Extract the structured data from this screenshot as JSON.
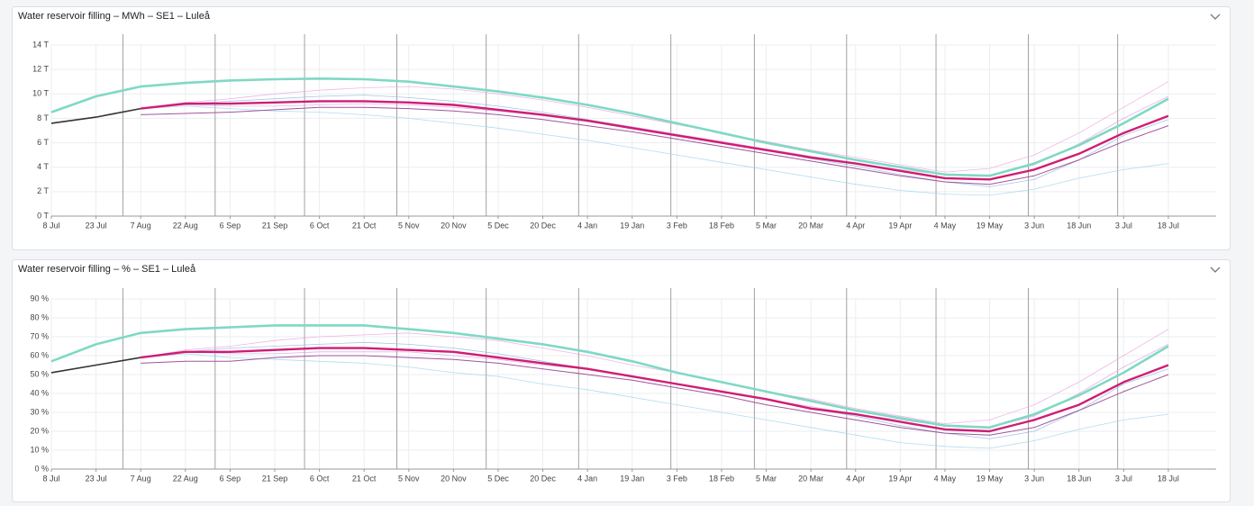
{
  "chart_data": [
    {
      "type": "line",
      "title": "Water reservoir filling – MWh – SE1 – Luleå",
      "categories": [
        "8 Jul",
        "23 Jul",
        "7 Aug",
        "22 Aug",
        "6 Sep",
        "21 Sep",
        "6 Oct",
        "21 Oct",
        "5 Nov",
        "20 Nov",
        "5 Dec",
        "20 Dec",
        "4 Jan",
        "19 Jan",
        "3 Feb",
        "18 Feb",
        "5 Mar",
        "20 Mar",
        "4 Apr",
        "19 Apr",
        "4 May",
        "19 May",
        "3 Jun",
        "18 Jun",
        "3 Jul",
        "18 Jul"
      ],
      "ylim": [
        0,
        14
      ],
      "yticks": [
        {
          "value": 0,
          "label": "0 T"
        },
        {
          "value": 2,
          "label": "2 T"
        },
        {
          "value": 4,
          "label": "4 T"
        },
        {
          "value": 6,
          "label": "6 T"
        },
        {
          "value": 8,
          "label": "8 T"
        },
        {
          "value": 10,
          "label": "10 T"
        },
        {
          "value": 12,
          "label": "12 T"
        },
        {
          "value": 14,
          "label": "14 T"
        }
      ],
      "grid": true,
      "series": [
        {
          "color": "#e8a6e0",
          "values": [
            null,
            null,
            8.8,
            9.3,
            9.6,
            10.0,
            10.3,
            10.5,
            10.6,
            10.4,
            10.0,
            9.5,
            8.9,
            8.2,
            7.5,
            6.8,
            6.1,
            5.4,
            4.8,
            4.2,
            3.6,
            3.9,
            5.0,
            6.8,
            8.9,
            11.0
          ]
        },
        {
          "color": "#9fd3ee",
          "values": [
            null,
            null,
            8.8,
            9.0,
            8.8,
            8.6,
            8.5,
            8.3,
            8.0,
            7.6,
            7.2,
            6.7,
            6.2,
            5.6,
            5.0,
            4.4,
            3.8,
            3.2,
            2.6,
            2.1,
            1.8,
            1.7,
            2.2,
            3.1,
            3.8,
            4.3
          ]
        },
        {
          "color": "#8fb9e0",
          "values": [
            null,
            null,
            8.8,
            9.2,
            9.4,
            9.6,
            9.8,
            9.9,
            9.7,
            9.4,
            9.0,
            8.5,
            7.9,
            7.3,
            6.7,
            6.0,
            5.4,
            4.7,
            4.1,
            3.4,
            2.8,
            2.4,
            3.0,
            4.6,
            6.6,
            7.9
          ]
        },
        {
          "color": "#d9a0e6",
          "values": [
            null,
            null,
            8.8,
            9.1,
            9.0,
            9.0,
            9.1,
            9.2,
            9.1,
            8.9,
            8.6,
            8.2,
            7.8,
            7.3,
            6.7,
            6.1,
            5.5,
            4.9,
            4.3,
            3.8,
            3.4,
            3.3,
            4.2,
            5.9,
            8.0,
            9.8
          ]
        },
        {
          "color": "#a0559c",
          "values": [
            null,
            null,
            8.3,
            8.4,
            8.5,
            8.7,
            8.9,
            8.9,
            8.8,
            8.6,
            8.3,
            7.9,
            7.4,
            6.9,
            6.3,
            5.7,
            5.1,
            4.5,
            3.9,
            3.3,
            2.8,
            2.6,
            3.3,
            4.6,
            6.1,
            7.4
          ]
        },
        {
          "color": "#333333",
          "values": [
            7.6,
            8.1,
            8.8,
            null,
            null,
            null,
            null,
            null,
            null,
            null,
            null,
            null,
            null,
            null,
            null,
            null,
            null,
            null,
            null,
            null,
            null,
            null,
            null,
            null,
            null,
            null
          ]
        },
        {
          "color": "#7fd9c4",
          "values": [
            8.5,
            9.8,
            10.6,
            10.9,
            11.1,
            11.2,
            11.25,
            11.2,
            11.0,
            10.6,
            10.2,
            9.7,
            9.1,
            8.4,
            7.6,
            6.8,
            6.0,
            5.3,
            4.6,
            4.0,
            3.4,
            3.3,
            4.3,
            5.8,
            7.6,
            9.6
          ]
        },
        {
          "color": "#d01c74",
          "values": [
            null,
            null,
            8.8,
            9.2,
            9.2,
            9.3,
            9.4,
            9.4,
            9.3,
            9.1,
            8.7,
            8.3,
            7.8,
            7.2,
            6.6,
            6.0,
            5.4,
            4.8,
            4.3,
            3.7,
            3.1,
            3.0,
            3.8,
            5.1,
            6.8,
            8.2
          ]
        }
      ]
    },
    {
      "type": "line",
      "title": "Water reservoir filling – % – SE1 – Luleå",
      "categories": [
        "8 Jul",
        "23 Jul",
        "7 Aug",
        "22 Aug",
        "6 Sep",
        "21 Sep",
        "6 Oct",
        "21 Oct",
        "5 Nov",
        "20 Nov",
        "5 Dec",
        "20 Dec",
        "4 Jan",
        "19 Jan",
        "3 Feb",
        "18 Feb",
        "5 Mar",
        "20 Mar",
        "4 Apr",
        "19 Apr",
        "4 May",
        "19 May",
        "3 Jun",
        "18 Jun",
        "3 Jul",
        "18 Jul"
      ],
      "ylim": [
        0,
        90
      ],
      "yticks": [
        {
          "value": 0,
          "label": "0 %"
        },
        {
          "value": 10,
          "label": "10 %"
        },
        {
          "value": 20,
          "label": "20 %"
        },
        {
          "value": 30,
          "label": "30 %"
        },
        {
          "value": 40,
          "label": "40 %"
        },
        {
          "value": 50,
          "label": "50 %"
        },
        {
          "value": 60,
          "label": "60 %"
        },
        {
          "value": 70,
          "label": "70 %"
        },
        {
          "value": 80,
          "label": "80 %"
        },
        {
          "value": 90,
          "label": "90 %"
        }
      ],
      "grid": true,
      "series": [
        {
          "color": "#e8a6e0",
          "values": [
            null,
            null,
            59,
            63,
            65,
            68,
            70,
            71,
            72,
            70,
            68,
            64,
            60,
            55,
            51,
            46,
            41,
            37,
            32,
            28,
            24,
            26,
            34,
            46,
            60,
            74
          ]
        },
        {
          "color": "#9fd3ee",
          "values": [
            null,
            null,
            59,
            61,
            59,
            58,
            57,
            56,
            54,
            51,
            49,
            45,
            42,
            38,
            34,
            30,
            26,
            22,
            18,
            14,
            12,
            11,
            15,
            21,
            26,
            29
          ]
        },
        {
          "color": "#8fb9e0",
          "values": [
            null,
            null,
            59,
            62,
            64,
            65,
            66,
            67,
            66,
            64,
            61,
            57,
            53,
            49,
            45,
            41,
            37,
            32,
            28,
            23,
            19,
            16,
            20,
            31,
            45,
            53
          ]
        },
        {
          "color": "#d9a0e6",
          "values": [
            null,
            null,
            59,
            62,
            61,
            61,
            62,
            62,
            62,
            60,
            58,
            55,
            53,
            49,
            45,
            41,
            37,
            33,
            29,
            26,
            23,
            22,
            28,
            40,
            54,
            66
          ]
        },
        {
          "color": "#a0559c",
          "values": [
            null,
            null,
            56,
            57,
            57,
            59,
            60,
            60,
            59,
            58,
            56,
            53,
            50,
            47,
            43,
            39,
            34,
            30,
            26,
            22,
            19,
            18,
            22,
            31,
            41,
            50
          ]
        },
        {
          "color": "#333333",
          "values": [
            51,
            55,
            59,
            null,
            null,
            null,
            null,
            null,
            null,
            null,
            null,
            null,
            null,
            null,
            null,
            null,
            null,
            null,
            null,
            null,
            null,
            null,
            null,
            null,
            null,
            null
          ]
        },
        {
          "color": "#7fd9c4",
          "values": [
            57,
            66,
            72,
            74,
            75,
            76,
            76,
            76,
            74,
            72,
            69,
            66,
            62,
            57,
            51,
            46,
            41,
            36,
            31,
            27,
            23,
            22,
            29,
            39,
            51,
            65
          ]
        },
        {
          "color": "#d01c74",
          "values": [
            null,
            null,
            59,
            62,
            62,
            63,
            64,
            64,
            63,
            62,
            59,
            56,
            53,
            49,
            45,
            41,
            37,
            32,
            29,
            25,
            21,
            20,
            26,
            34,
            46,
            55
          ]
        }
      ]
    }
  ]
}
